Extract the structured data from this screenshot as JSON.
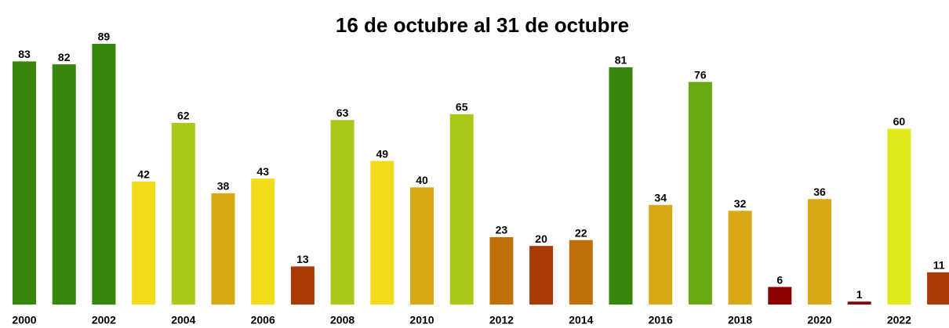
{
  "chart_data": {
    "type": "bar",
    "title": "16 de octubre al 31 de octubre",
    "categories": [
      "2000",
      null,
      "2002",
      null,
      "2004",
      null,
      "2006",
      null,
      "2008",
      null,
      "2010",
      null,
      "2012",
      null,
      "2014",
      null,
      "2016",
      null,
      "2018",
      null,
      "2020",
      null,
      "2022",
      null
    ],
    "values": [
      83,
      82,
      89,
      42,
      62,
      38,
      43,
      13,
      63,
      49,
      40,
      65,
      23,
      20,
      22,
      81,
      34,
      76,
      32,
      6,
      36,
      1,
      60,
      11
    ],
    "colors": [
      "#38860b",
      "#38860b",
      "#38860b",
      "#f0dc1a",
      "#a8c81a",
      "#d8a815",
      "#f0dc1a",
      "#a83a05",
      "#a8c81a",
      "#f0dc1a",
      "#d8a815",
      "#a8c81a",
      "#c0700a",
      "#a83a05",
      "#c0700a",
      "#38860b",
      "#d8a815",
      "#6aa814",
      "#d8a815",
      "#8b0000",
      "#d8a815",
      "#8b0000",
      "#e0e81e",
      "#a83a05"
    ]
  }
}
